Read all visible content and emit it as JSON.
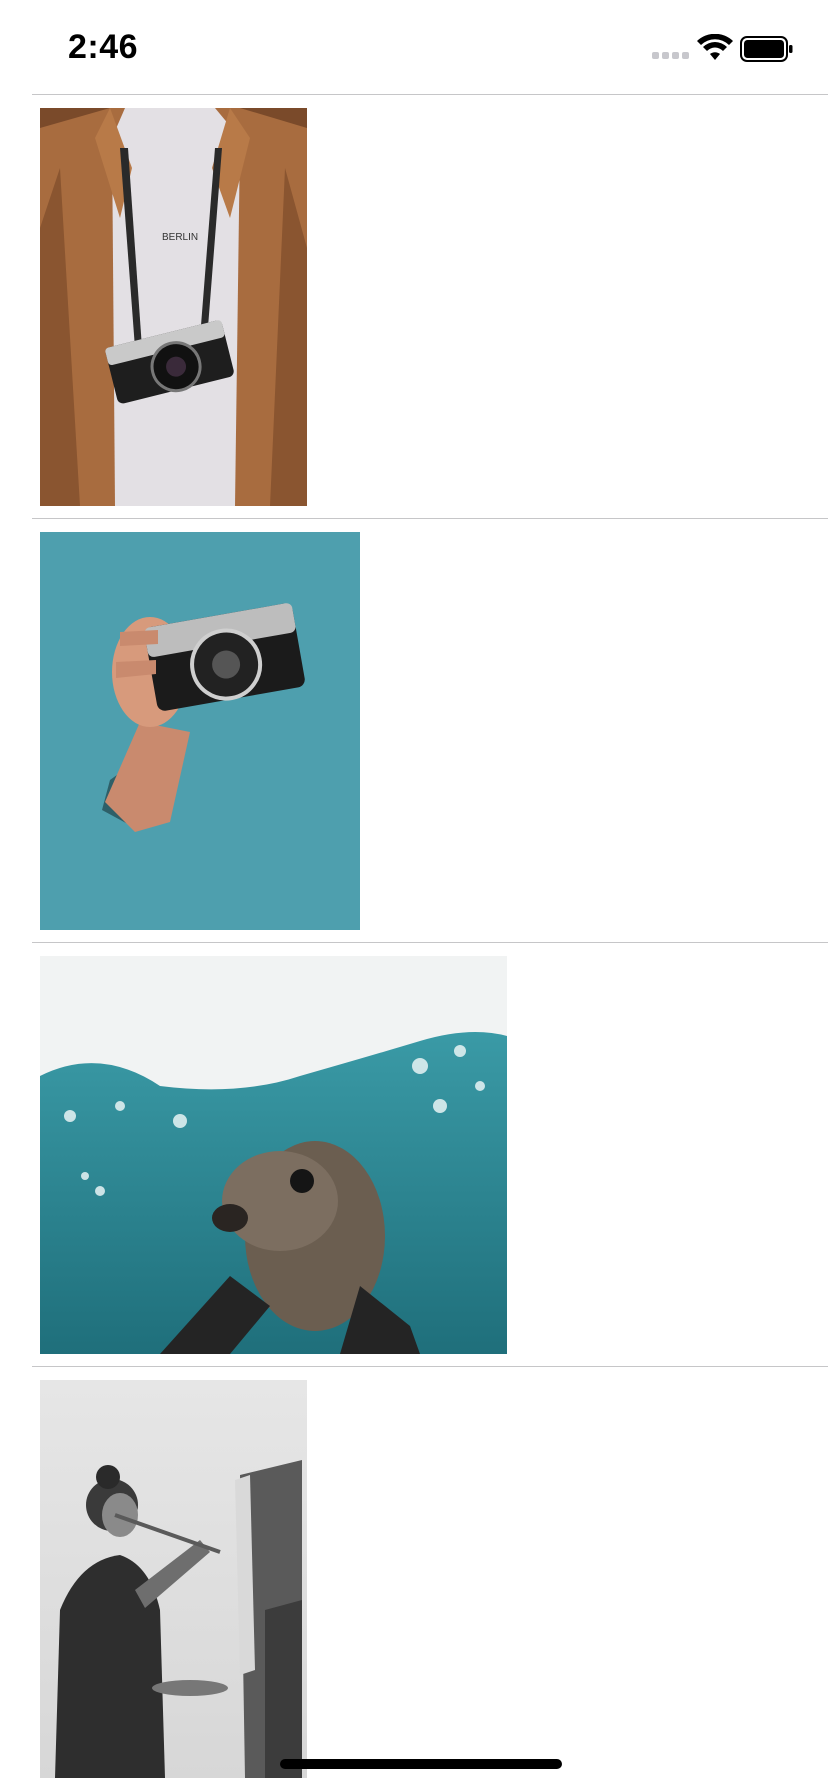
{
  "status_bar": {
    "time": "2:46",
    "icons": [
      "cellular-signal-icon",
      "wifi-icon",
      "battery-icon"
    ]
  },
  "photos": [
    {
      "subject": "person-with-camera-jacket",
      "shirt_text": "BERLIN"
    },
    {
      "subject": "hand-with-camera-teal-wall"
    },
    {
      "subject": "sea-lion-underwater"
    },
    {
      "subject": "woman-painting-at-easel"
    }
  ],
  "colors": {
    "separator": "#c6c6c8",
    "teal": "#4e9fae",
    "sea": "#2f8c98"
  }
}
